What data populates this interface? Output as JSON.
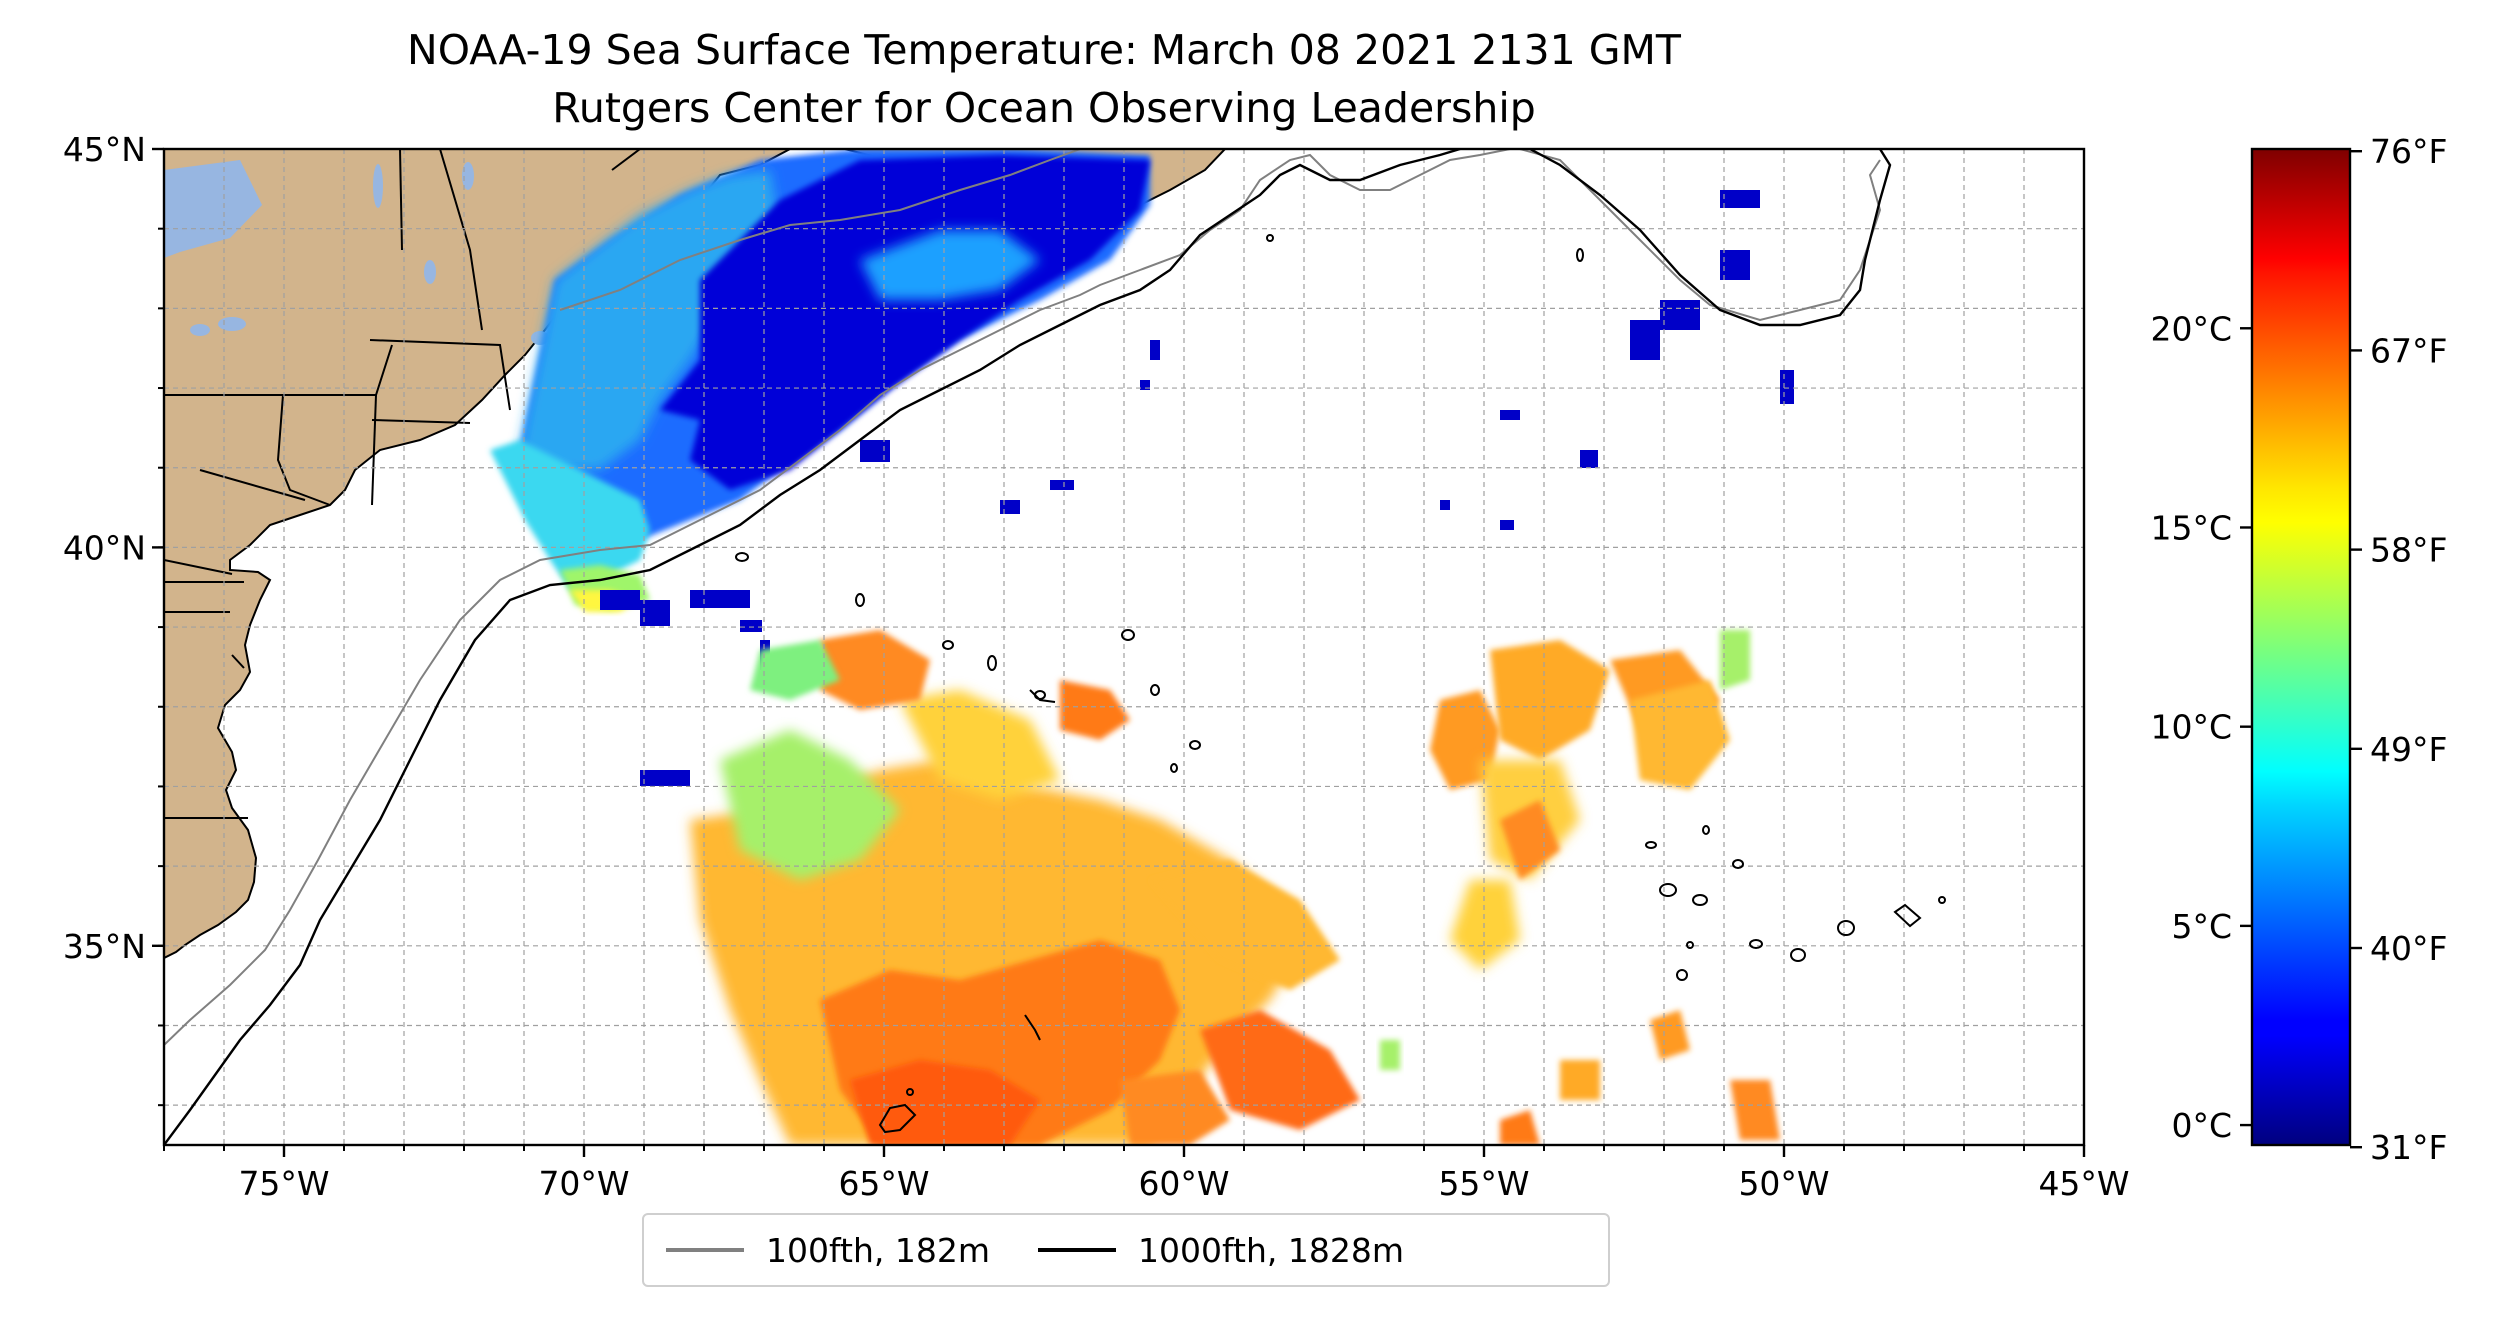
{
  "title": {
    "line1": "NOAA-19 Sea Surface Temperature: March 08 2021 2131 GMT",
    "line2": "Rutgers Center for Ocean Observing Leadership"
  },
  "map": {
    "extent": {
      "lon_min": -77,
      "lon_max": -45,
      "lat_min": 32.5,
      "lat_max": 45
    },
    "lat_ticks": [
      {
        "value": 45,
        "label": "45°N"
      },
      {
        "value": 40,
        "label": "40°N"
      },
      {
        "value": 35,
        "label": "35°N"
      }
    ],
    "lon_ticks": [
      {
        "value": -75,
        "label": "75°W"
      },
      {
        "value": -70,
        "label": "70°W"
      },
      {
        "value": -65,
        "label": "65°W"
      },
      {
        "value": -60,
        "label": "60°W"
      },
      {
        "value": -55,
        "label": "55°W"
      },
      {
        "value": -50,
        "label": "50°W"
      },
      {
        "value": -45,
        "label": "45°W"
      }
    ],
    "land_color": "#d2b48c",
    "lake_color": "#97b6e1",
    "grid": true
  },
  "legend": {
    "items": [
      {
        "label": "100fth, 182m",
        "color": "#808080"
      },
      {
        "label": "1000fth, 1828m",
        "color": "#000000"
      }
    ]
  },
  "colorbar": {
    "colormap": "jet",
    "range_celsius": [
      -0.5,
      24.5
    ],
    "celsius_ticks": [
      {
        "value": 0,
        "label": "0°C"
      },
      {
        "value": 5,
        "label": "5°C"
      },
      {
        "value": 10,
        "label": "10°C"
      },
      {
        "value": 15,
        "label": "15°C"
      },
      {
        "value": 20,
        "label": "20°C"
      }
    ],
    "fahrenheit_ticks": [
      {
        "value": 31,
        "label": "31°F"
      },
      {
        "value": 40,
        "label": "40°F"
      },
      {
        "value": 49,
        "label": "49°F"
      },
      {
        "value": 58,
        "label": "58°F"
      },
      {
        "value": 67,
        "label": "67°F"
      },
      {
        "value": 76,
        "label": "76°F"
      }
    ]
  }
}
